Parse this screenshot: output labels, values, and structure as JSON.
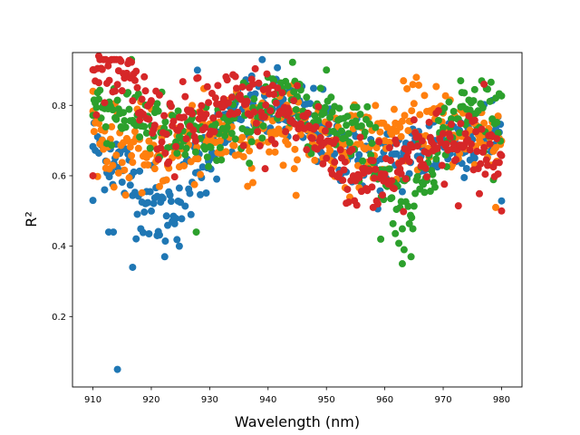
{
  "chart_data": {
    "type": "scatter",
    "xlabel": "Wavelength (nm)",
    "ylabel": "R²",
    "xlim": [
      906.5,
      983.5
    ],
    "ylim": [
      0.0,
      0.95
    ],
    "xticks": [
      910,
      920,
      930,
      940,
      950,
      960,
      970,
      980
    ],
    "yticks": [
      0.2,
      0.4,
      0.6,
      0.8
    ],
    "xtick_labels": [
      "910",
      "920",
      "930",
      "940",
      "950",
      "960",
      "970",
      "980"
    ],
    "ytick_labels": [
      "0.2",
      "0.4",
      "0.6",
      "0.8"
    ],
    "grid": false,
    "legend": "none",
    "series": [
      {
        "color": "#1f77b4",
        "x_range": [
          910,
          980
        ],
        "x_step": 0.2,
        "profile_x": [
          910,
          913,
          916,
          918,
          920,
          922,
          924,
          926,
          928,
          930,
          933,
          936,
          940,
          945,
          950,
          955,
          958,
          962,
          966,
          970,
          975,
          980
        ],
        "profile_mean": [
          0.7,
          0.66,
          0.6,
          0.55,
          0.52,
          0.5,
          0.52,
          0.56,
          0.62,
          0.68,
          0.74,
          0.78,
          0.8,
          0.77,
          0.72,
          0.66,
          0.63,
          0.64,
          0.67,
          0.7,
          0.72,
          0.72
        ],
        "spread": 0.055,
        "outliers": [
          [
            914.2,
            0.05
          ],
          [
            916.8,
            0.34
          ],
          [
            912.7,
            0.44
          ],
          [
            913.5,
            0.44
          ],
          [
            922.3,
            0.37
          ],
          [
            924.8,
            0.4
          ],
          [
            921.0,
            0.43
          ],
          [
            927.9,
            0.9
          ],
          [
            910.0,
            0.53
          ]
        ]
      },
      {
        "color": "#ff7f0e",
        "x_range": [
          910,
          980
        ],
        "x_step": 0.2,
        "profile_x": [
          910,
          914,
          918,
          922,
          926,
          930,
          935,
          940,
          945,
          950,
          955,
          960,
          963,
          966,
          970,
          975,
          980
        ],
        "profile_mean": [
          0.72,
          0.68,
          0.66,
          0.67,
          0.68,
          0.7,
          0.73,
          0.75,
          0.73,
          0.7,
          0.68,
          0.7,
          0.74,
          0.76,
          0.74,
          0.72,
          0.7
        ],
        "spread": 0.055,
        "outliers": [
          [
            910.0,
            0.84
          ],
          [
            936.5,
            0.57
          ],
          [
            944.5,
            0.62
          ],
          [
            979.0,
            0.51
          ],
          [
            962.0,
            0.59
          ]
        ]
      },
      {
        "color": "#2ca02c",
        "x_range": [
          910,
          980
        ],
        "x_step": 0.2,
        "profile_x": [
          910,
          914,
          918,
          922,
          926,
          930,
          935,
          940,
          945,
          950,
          955,
          958,
          960,
          962,
          964,
          966,
          970,
          975,
          980
        ],
        "profile_mean": [
          0.8,
          0.79,
          0.77,
          0.73,
          0.7,
          0.7,
          0.75,
          0.8,
          0.8,
          0.78,
          0.74,
          0.68,
          0.58,
          0.52,
          0.52,
          0.58,
          0.72,
          0.79,
          0.79
        ],
        "spread": 0.05,
        "outliers": [
          [
            927.7,
            0.44
          ],
          [
            959.3,
            0.42
          ],
          [
            963.0,
            0.35
          ],
          [
            964.5,
            0.37
          ],
          [
            963.3,
            0.39
          ],
          [
            973.0,
            0.87
          ],
          [
            940.0,
            0.88
          ]
        ]
      },
      {
        "color": "#d62728",
        "x_range": [
          910,
          980
        ],
        "x_step": 0.2,
        "profile_x": [
          910,
          912,
          915,
          918,
          921,
          924,
          927,
          930,
          935,
          940,
          945,
          950,
          953,
          956,
          958,
          962,
          966,
          970,
          975,
          980
        ],
        "profile_mean": [
          0.9,
          0.9,
          0.88,
          0.82,
          0.74,
          0.72,
          0.76,
          0.78,
          0.8,
          0.8,
          0.76,
          0.68,
          0.62,
          0.59,
          0.6,
          0.64,
          0.69,
          0.68,
          0.67,
          0.66
        ],
        "spread": 0.055,
        "outliers": [
          [
            910.0,
            0.6
          ],
          [
            939.5,
            0.62
          ],
          [
            958.0,
            0.51
          ],
          [
            980.0,
            0.5
          ],
          [
            977.0,
            0.86
          ],
          [
            911.0,
            0.94
          ]
        ]
      }
    ]
  }
}
